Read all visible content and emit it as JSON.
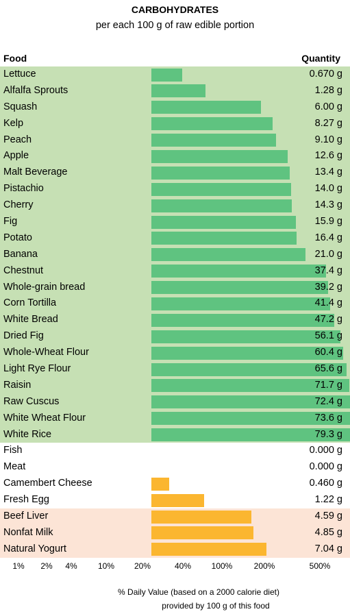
{
  "header": {
    "title": "CARBOHYDRATES",
    "subtitle": "per each 100 g of raw edible portion",
    "food_col": "Food",
    "qty_col": "Quantity"
  },
  "footer": {
    "line1": "% Daily Value (based on a 2000 calorie diet)",
    "line2": "provided by 100 g of this food"
  },
  "chart_data": {
    "type": "bar",
    "orientation": "horizontal",
    "scale": "log",
    "unit": "g",
    "x_ticks": [
      "1%",
      "2%",
      "4%",
      "10%",
      "20%",
      "40%",
      "100%",
      "200%",
      "500%"
    ],
    "colors": {
      "green_bar": "#5fc380",
      "orange_bar": "#fbb630",
      "green_bg": "#c6e0b4",
      "pink_bg": "#fce4d6"
    },
    "rows": [
      {
        "food": "Lettuce",
        "value": 0.67,
        "label": "0.670 g",
        "group": "green"
      },
      {
        "food": "Alfalfa Sprouts",
        "value": 1.28,
        "label": "1.28 g",
        "group": "green"
      },
      {
        "food": "Squash",
        "value": 6.0,
        "label": "6.00 g",
        "group": "green"
      },
      {
        "food": "Kelp",
        "value": 8.27,
        "label": "8.27 g",
        "group": "green"
      },
      {
        "food": "Peach",
        "value": 9.1,
        "label": "9.10 g",
        "group": "green"
      },
      {
        "food": "Apple",
        "value": 12.6,
        "label": "12.6 g",
        "group": "green"
      },
      {
        "food": "Malt Beverage",
        "value": 13.4,
        "label": "13.4 g",
        "group": "green"
      },
      {
        "food": "Pistachio",
        "value": 14.0,
        "label": "14.0 g",
        "group": "green"
      },
      {
        "food": "Cherry",
        "value": 14.3,
        "label": "14.3 g",
        "group": "green"
      },
      {
        "food": "Fig",
        "value": 15.9,
        "label": "15.9 g",
        "group": "green"
      },
      {
        "food": "Potato",
        "value": 16.4,
        "label": "16.4 g",
        "group": "green"
      },
      {
        "food": "Banana",
        "value": 21.0,
        "label": "21.0 g",
        "group": "green"
      },
      {
        "food": "Chestnut",
        "value": 37.4,
        "label": "37.4 g",
        "group": "green"
      },
      {
        "food": "Whole-grain bread",
        "value": 39.2,
        "label": "39.2 g",
        "group": "green"
      },
      {
        "food": "Corn Tortilla",
        "value": 41.4,
        "label": "41.4 g",
        "group": "green"
      },
      {
        "food": "White Bread",
        "value": 47.2,
        "label": "47.2 g",
        "group": "green"
      },
      {
        "food": "Dried Fig",
        "value": 56.1,
        "label": "56.1 g",
        "group": "green"
      },
      {
        "food": "Whole-Wheat Flour",
        "value": 60.4,
        "label": "60.4 g",
        "group": "green"
      },
      {
        "food": "Light Rye Flour",
        "value": 65.6,
        "label": "65.6 g",
        "group": "green"
      },
      {
        "food": "Raisin",
        "value": 71.7,
        "label": "71.7 g",
        "group": "green"
      },
      {
        "food": "Raw Cuscus",
        "value": 72.4,
        "label": "72.4 g",
        "group": "green"
      },
      {
        "food": "White Wheat Flour",
        "value": 73.6,
        "label": "73.6 g",
        "group": "green"
      },
      {
        "food": "White Rice",
        "value": 79.3,
        "label": "79.3 g",
        "group": "green"
      },
      {
        "food": "Fish",
        "value": 0.0,
        "label": "0.000 g",
        "group": "white"
      },
      {
        "food": "Meat",
        "value": 0.0,
        "label": "0.000 g",
        "group": "white"
      },
      {
        "food": "Camembert Cheese",
        "value": 0.46,
        "label": "0.460 g",
        "group": "white"
      },
      {
        "food": "Fresh Egg",
        "value": 1.22,
        "label": "1.22 g",
        "group": "white"
      },
      {
        "food": "Beef Liver",
        "value": 4.59,
        "label": "4.59 g",
        "group": "pink"
      },
      {
        "food": "Nonfat Milk",
        "value": 4.85,
        "label": "4.85 g",
        "group": "pink"
      },
      {
        "food": "Natural Yogurt",
        "value": 7.04,
        "label": "7.04 g",
        "group": "pink"
      }
    ]
  }
}
